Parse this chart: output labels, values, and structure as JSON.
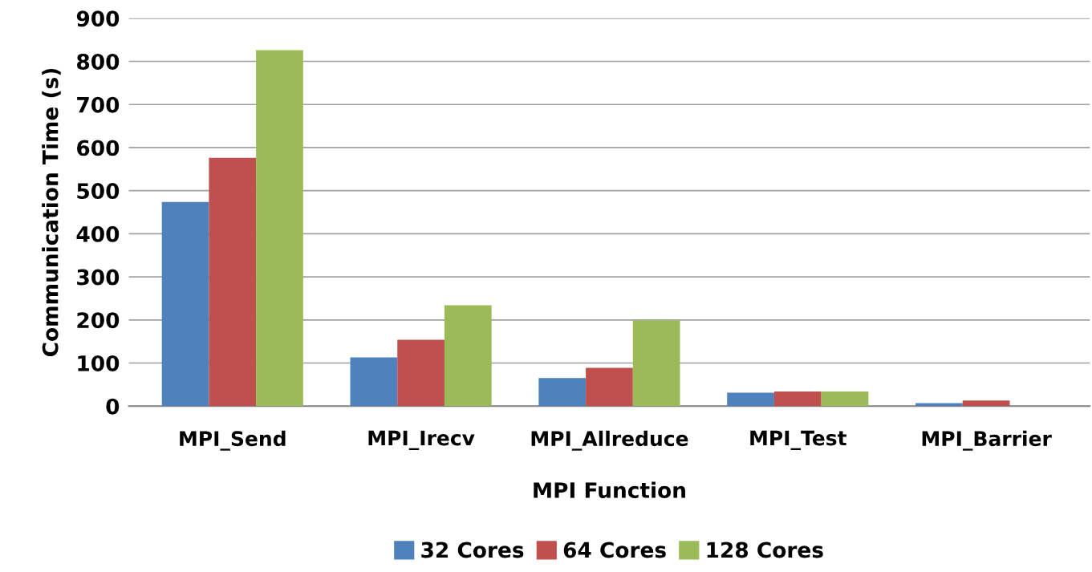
{
  "chart_data": {
    "type": "bar",
    "xlabel": "MPI Function",
    "ylabel": "Communication Time (s)",
    "categories": [
      "MPI_Send",
      "MPI_Irecv",
      "MPI_Allreduce",
      "MPI_Test",
      "MPI_Barrier"
    ],
    "series": [
      {
        "name": "32 Cores",
        "color": "#4f81bd",
        "values": [
          474,
          113,
          65,
          31,
          7
        ]
      },
      {
        "name": "64 Cores",
        "color": "#c0504d",
        "values": [
          576,
          154,
          89,
          34,
          13
        ]
      },
      {
        "name": "128 Cores",
        "color": "#9bbb59",
        "values": [
          826,
          234,
          199,
          34,
          0
        ]
      }
    ],
    "ylim": [
      0,
      900
    ],
    "yticks": [
      0,
      100,
      200,
      300,
      400,
      500,
      600,
      700,
      800,
      900
    ],
    "grid": "y",
    "legend": "bottom"
  }
}
